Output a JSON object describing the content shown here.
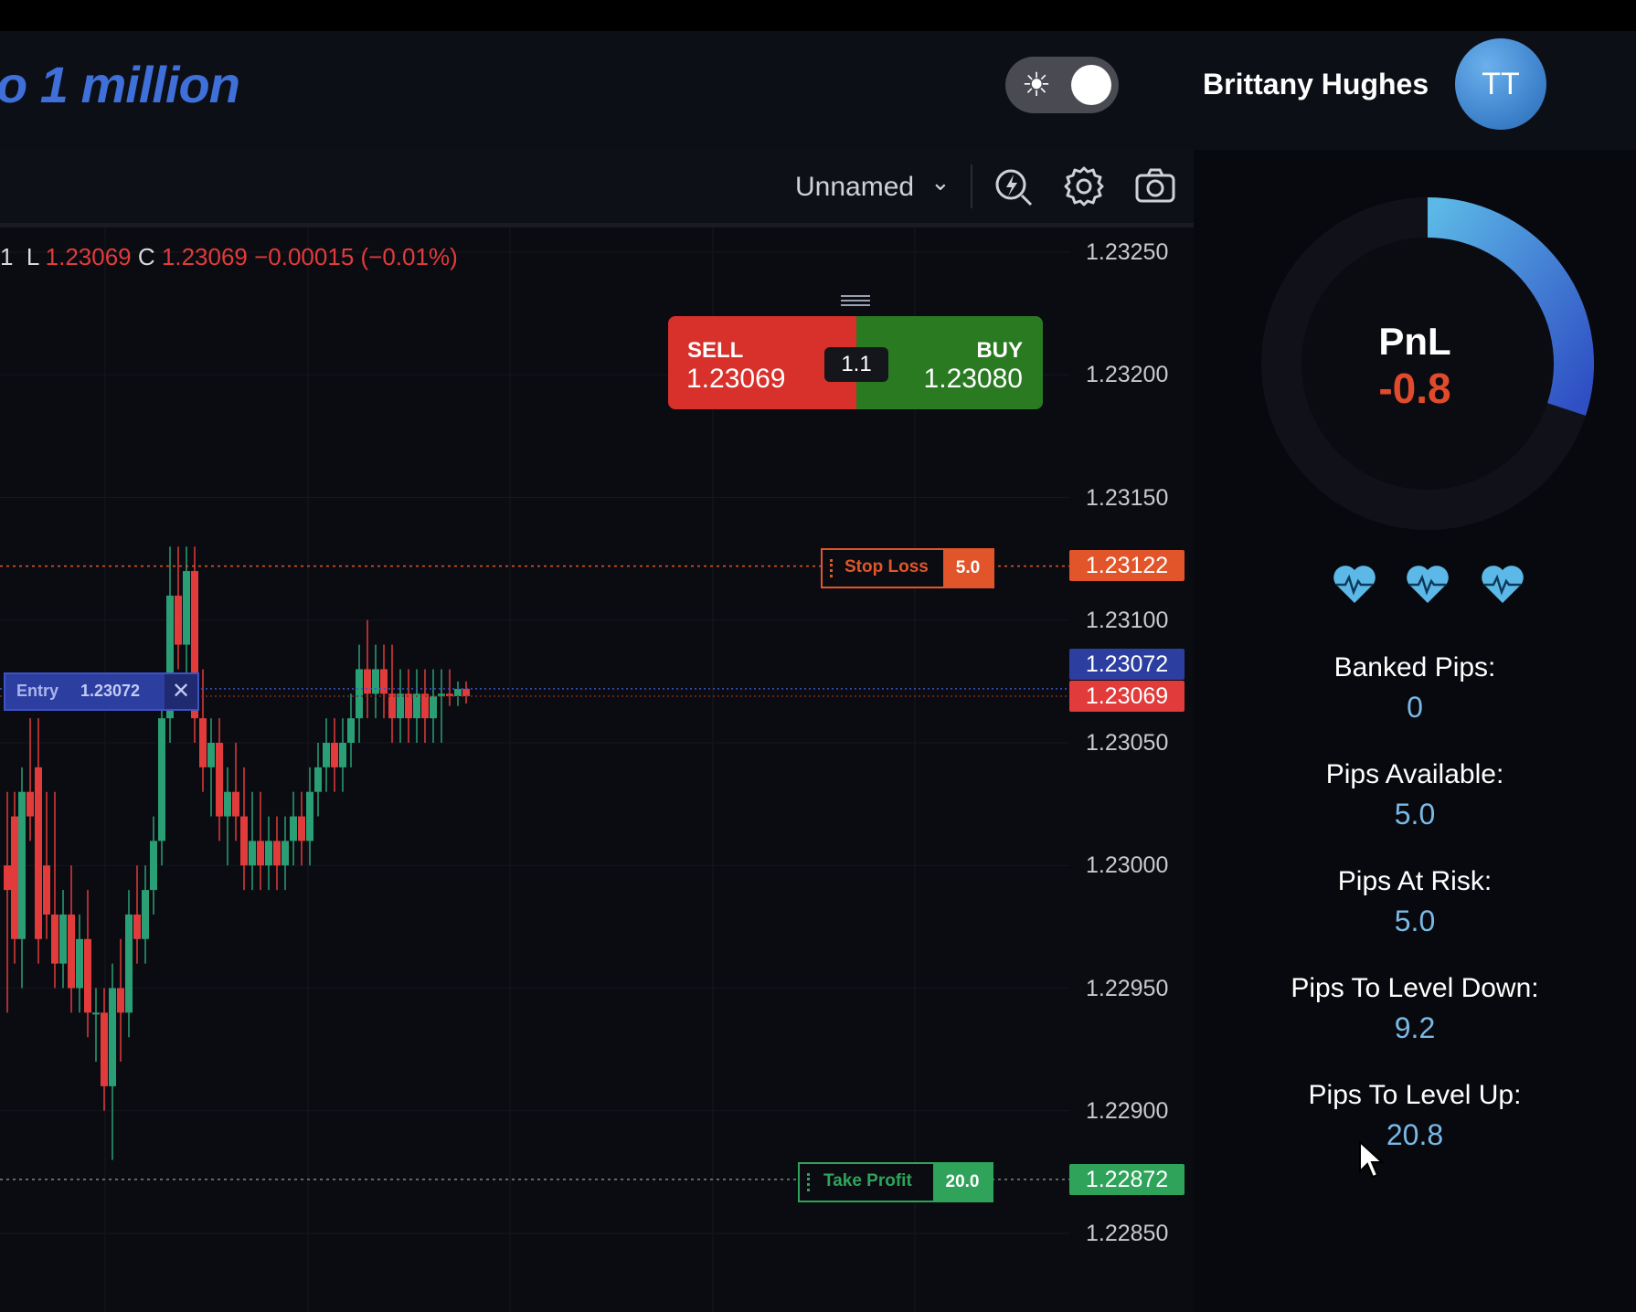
{
  "header": {
    "title": "o 1 million",
    "theme_icon": "sun-icon",
    "user_name": "Brittany Hughes",
    "avatar_initials": "TT"
  },
  "toolbar": {
    "layout_name": "Unnamed",
    "icons": [
      "chevron-down-icon",
      "lightning-icon",
      "gear-icon",
      "camera-icon"
    ]
  },
  "chart": {
    "ohlc": {
      "prefix": "1",
      "low_label": "L",
      "low": "1.23069",
      "close_label": "C",
      "close": "1.23069",
      "change": "−0.00015 (−0.01%)"
    },
    "price_axis": [
      "1.23250",
      "1.23200",
      "1.23150",
      "1.23100",
      "1.23050",
      "1.23000",
      "1.22950",
      "1.22900",
      "1.22850"
    ],
    "tags": {
      "stop_loss_price": "1.23122",
      "entry_price": "1.23072",
      "current_price": "1.23069",
      "take_profit_price": "1.22872"
    },
    "order_widget": {
      "sell_label": "SELL",
      "sell_price": "1.23069",
      "quantity": "1.1",
      "buy_label": "BUY",
      "buy_price": "1.23080"
    },
    "stop_loss": {
      "label": "Stop Loss",
      "value": "5.0"
    },
    "take_profit": {
      "label": "Take Profit",
      "value": "20.0"
    },
    "entry": {
      "label": "Entry",
      "value": "1.23072"
    },
    "colors": {
      "up": "#2a9e74",
      "down": "#e23b3b",
      "stop_loss": "#e2552a",
      "take_profit": "#2fa35a",
      "entry": "#2c3fa0"
    }
  },
  "panel": {
    "pnl_label": "PnL",
    "pnl_value": "-0.8",
    "lives": 3,
    "stats": [
      {
        "label": "Banked Pips:",
        "value": "0"
      },
      {
        "label": "Pips Available:",
        "value": "5.0"
      },
      {
        "label": "Pips At Risk:",
        "value": "5.0"
      },
      {
        "label": "Pips To Level Down:",
        "value": "9.2"
      },
      {
        "label": "Pips To Level Up:",
        "value": "20.8"
      }
    ]
  }
}
